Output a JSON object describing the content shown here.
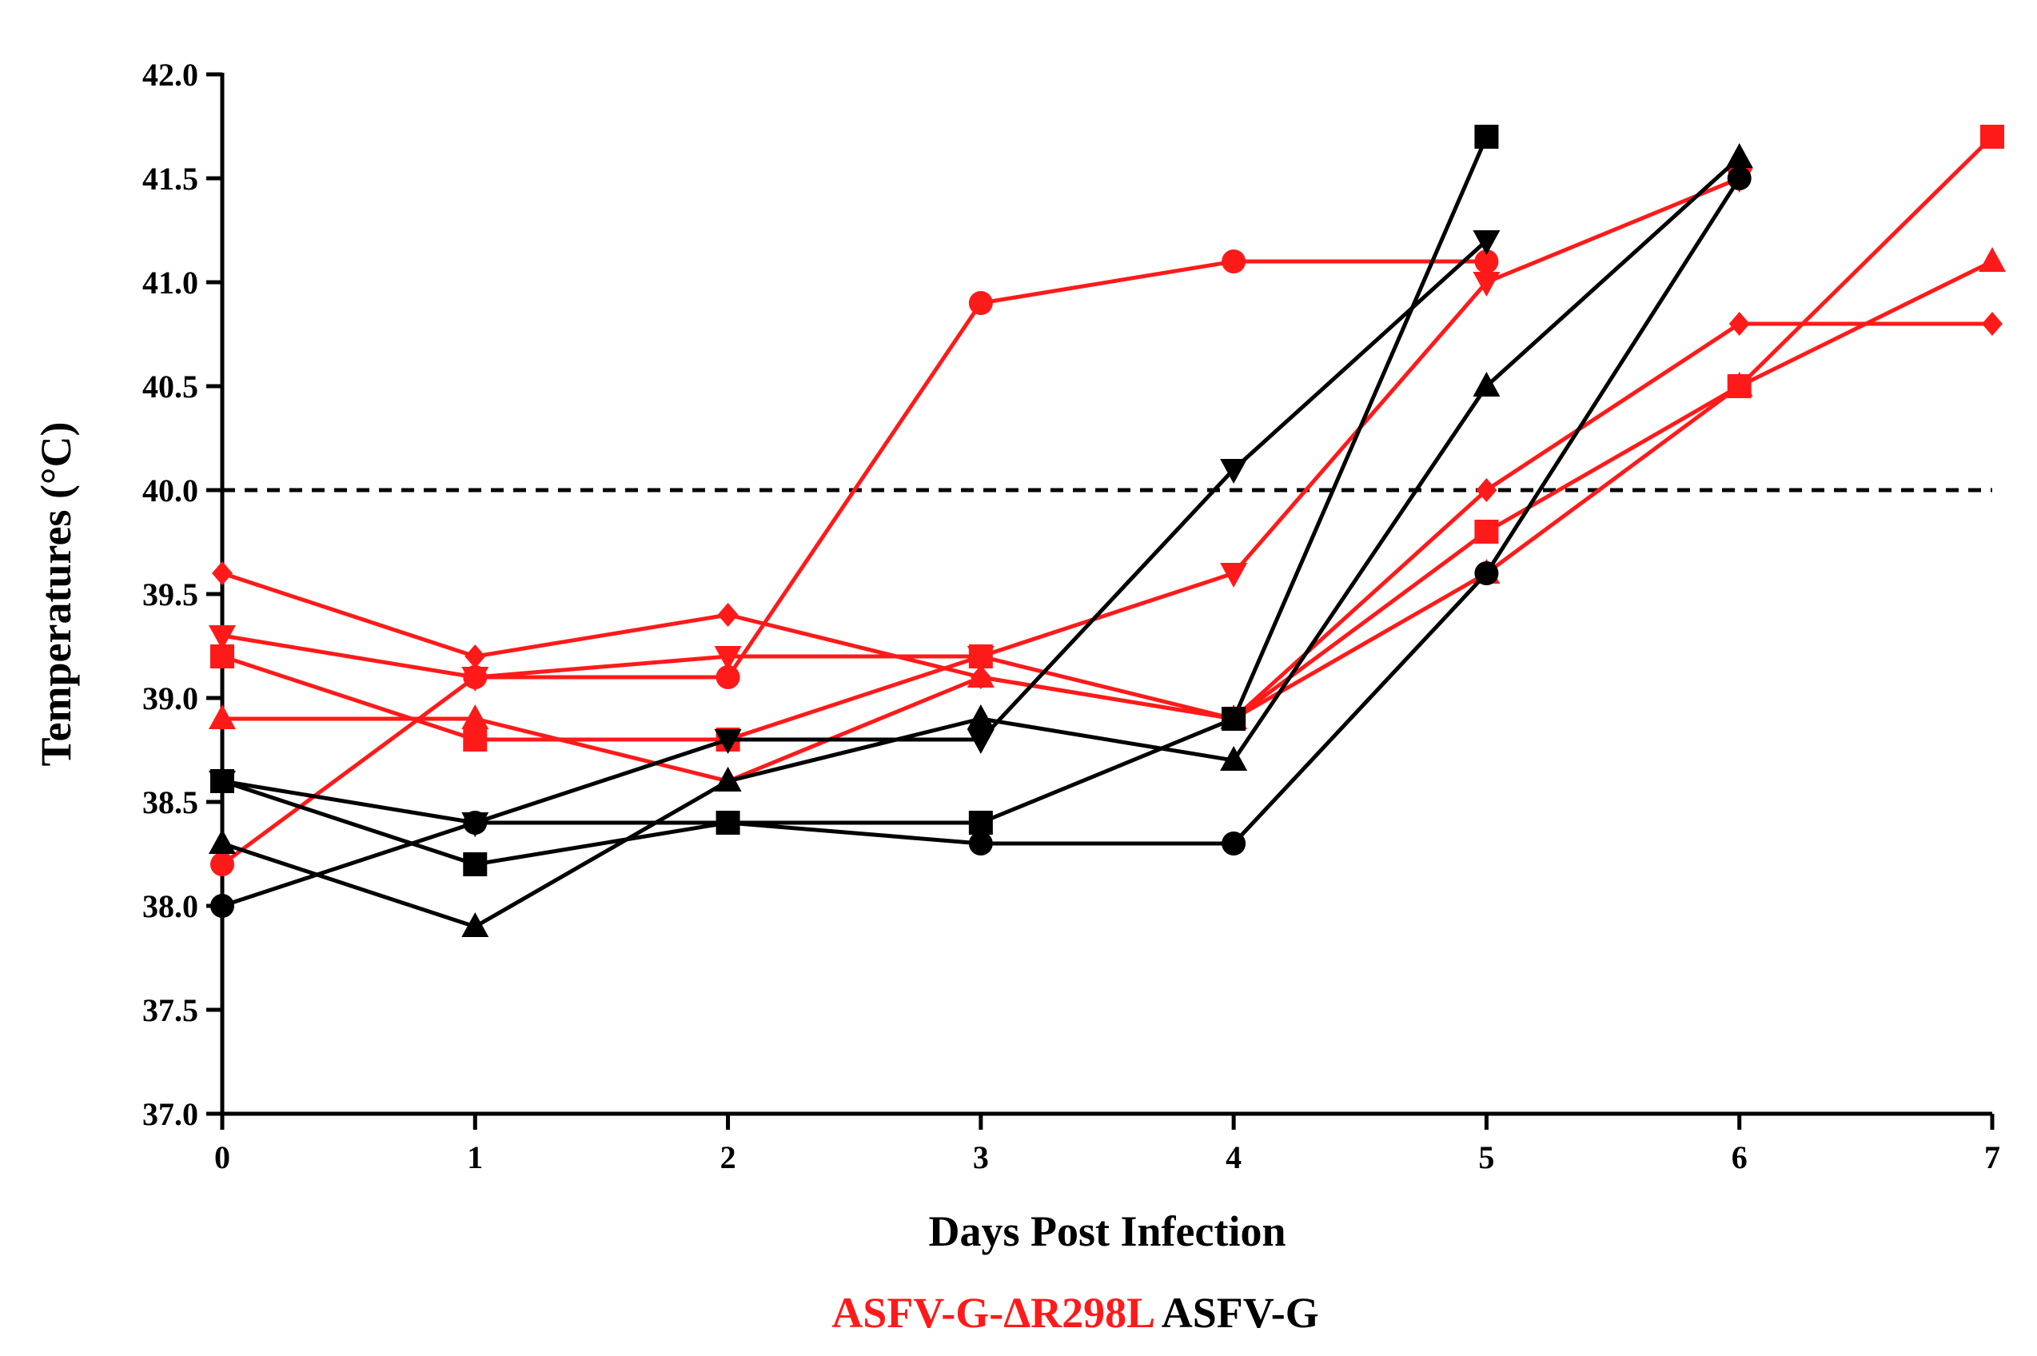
{
  "chart_data": {
    "type": "line",
    "xlabel": "Days Post Infection",
    "ylabel": "Temperatures (°C)",
    "x_ticks": [
      "0",
      "1",
      "2",
      "3",
      "4",
      "5",
      "6",
      "7"
    ],
    "y_ticks": [
      "37.0",
      "37.5",
      "38.0",
      "38.5",
      "39.0",
      "39.5",
      "40.0",
      "40.5",
      "41.0",
      "41.5",
      "42.0"
    ],
    "xlim": [
      0,
      7
    ],
    "ylim": [
      37.0,
      42.0
    ],
    "threshold": {
      "value": 40.0,
      "style": "dashed"
    },
    "legend": [
      {
        "label": "ASFV-G-ΔR298L",
        "color": "#ff1a1a"
      },
      {
        "label": "ASFV-G",
        "color": "#000000"
      }
    ],
    "series": [
      {
        "name": "ASFV-G-ΔR298L circle",
        "group": "ASFV-G-ΔR298L",
        "color": "#ff1a1a",
        "marker": "circle",
        "x": [
          0,
          1,
          2,
          3,
          4,
          5
        ],
        "y": [
          38.2,
          39.1,
          39.1,
          40.9,
          41.1,
          41.1
        ]
      },
      {
        "name": "ASFV-G-ΔR298L square",
        "group": "ASFV-G-ΔR298L",
        "color": "#ff1a1a",
        "marker": "square",
        "x": [
          0,
          1,
          2,
          3,
          4,
          5,
          6,
          7
        ],
        "y": [
          39.2,
          38.8,
          38.8,
          39.2,
          38.9,
          39.8,
          40.5,
          41.7
        ]
      },
      {
        "name": "ASFV-G-ΔR298L triangle",
        "group": "ASFV-G-ΔR298L",
        "color": "#ff1a1a",
        "marker": "triangle",
        "x": [
          0,
          1,
          2,
          3,
          4,
          5,
          6,
          7
        ],
        "y": [
          38.9,
          38.9,
          38.6,
          39.1,
          38.9,
          39.6,
          40.5,
          41.1
        ]
      },
      {
        "name": "ASFV-G-ΔR298L inverted triangle",
        "group": "ASFV-G-ΔR298L",
        "color": "#ff1a1a",
        "marker": "triangle-down",
        "x": [
          0,
          1,
          2,
          3,
          4,
          5,
          6
        ],
        "y": [
          39.3,
          39.1,
          39.2,
          39.2,
          39.6,
          41.0,
          41.5
        ]
      },
      {
        "name": "ASFV-G-ΔR298L diamond",
        "group": "ASFV-G-ΔR298L",
        "color": "#ff1a1a",
        "marker": "diamond",
        "x": [
          0,
          1,
          2,
          3,
          4,
          5,
          6,
          7
        ],
        "y": [
          39.6,
          39.2,
          39.4,
          39.1,
          38.9,
          40.0,
          40.8,
          40.8
        ]
      },
      {
        "name": "ASFV-G circle",
        "group": "ASFV-G",
        "color": "#000000",
        "marker": "circle",
        "x": [
          0,
          1,
          2,
          3,
          4,
          5,
          6
        ],
        "y": [
          38.0,
          38.4,
          38.4,
          38.3,
          38.3,
          39.6,
          41.5
        ]
      },
      {
        "name": "ASFV-G square",
        "group": "ASFV-G",
        "color": "#000000",
        "marker": "square",
        "x": [
          0,
          1,
          2,
          3,
          4,
          5
        ],
        "y": [
          38.6,
          38.2,
          38.4,
          38.4,
          38.9,
          41.7
        ]
      },
      {
        "name": "ASFV-G triangle",
        "group": "ASFV-G",
        "color": "#000000",
        "marker": "triangle",
        "x": [
          0,
          1,
          2,
          3,
          4,
          5,
          6
        ],
        "y": [
          38.3,
          37.9,
          38.6,
          38.9,
          38.7,
          40.5,
          41.6
        ]
      },
      {
        "name": "ASFV-G inverted triangle",
        "group": "ASFV-G",
        "color": "#000000",
        "marker": "triangle-down",
        "x": [
          0,
          1,
          2,
          3,
          4,
          5
        ],
        "y": [
          38.6,
          38.4,
          38.8,
          38.8,
          40.1,
          41.2
        ]
      }
    ]
  }
}
